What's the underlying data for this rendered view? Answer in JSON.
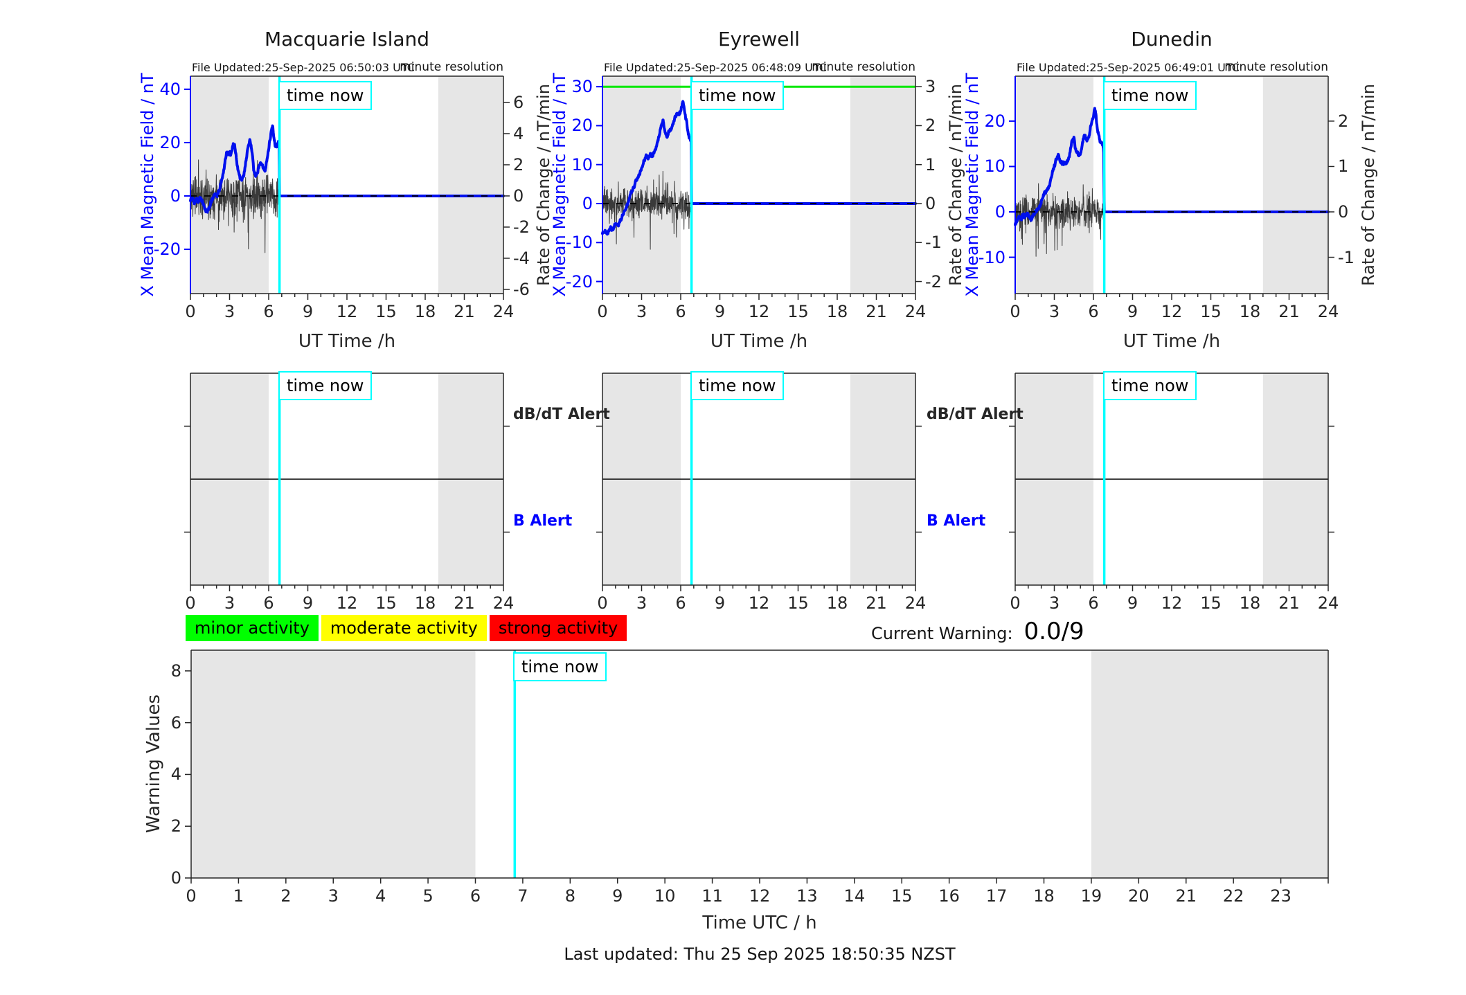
{
  "labels": {
    "time_now": "time now",
    "db_dt_alert": "dB/dT Alert",
    "b_alert": "B Alert",
    "current_warning_label": "Current Warning:",
    "current_warning_value": "0.0/9",
    "last_updated": "Last updated: Thu 25 Sep 2025 18:50:35 NZST"
  },
  "legend": {
    "items": [
      {
        "label": "minor activity",
        "color": "#00ff00"
      },
      {
        "label": "moderate activity",
        "color": "#ffff00"
      },
      {
        "label": "strong activity",
        "color": "#ff0000"
      }
    ]
  },
  "colors": {
    "field_line": "#0010ee",
    "axis_blue": "#0000ff",
    "axis_dark": "#262626",
    "time_now": "#00ffff",
    "threshold_green": "#00e800",
    "band_gray": "#e6e6e6",
    "noise": "#3a3a3a",
    "zero_dash": "#000000"
  },
  "chart_data": [
    {
      "type": "line",
      "title": "Macquarie Island",
      "file_updated": "File Updated:25-Sep-2025 06:50:03 UTC",
      "resolution_note": "minute resolution",
      "xlabel": "UT Time /h",
      "ylabel_left": "X Mean Magnetic Field / nT",
      "ylabel_right": "Rate of Change / nT/min",
      "xlim": [
        0,
        24
      ],
      "xticks_major": [
        0,
        3,
        6,
        9,
        12,
        15,
        18,
        21,
        24
      ],
      "xtick_minor_step": 1,
      "ylim_left": [
        -36.6,
        44.9
      ],
      "yticks_left": [
        40,
        20,
        0,
        -20
      ],
      "ylim_right": [
        -6.27,
        7.69
      ],
      "yticks_right": [
        6,
        4,
        2,
        0,
        -2,
        -4,
        -6
      ],
      "night_bands": [
        [
          0,
          6
        ],
        [
          19,
          24
        ]
      ],
      "time_now": 6.83,
      "zero_line": 0,
      "green_threshold_left": null,
      "field_series": {
        "name": "X mean magnetic field (nT)",
        "jitter_seed": 101,
        "jitter_amp": 0.8,
        "points": [
          [
            0,
            -1.5
          ],
          [
            0.15,
            -0.5
          ],
          [
            0.3,
            -2.5
          ],
          [
            0.45,
            -1
          ],
          [
            0.6,
            -2
          ],
          [
            0.75,
            -0.5
          ],
          [
            0.9,
            -2
          ],
          [
            1.05,
            -4
          ],
          [
            1.2,
            -5.5
          ],
          [
            1.3,
            -6
          ],
          [
            1.45,
            -4.5
          ],
          [
            1.6,
            -2
          ],
          [
            1.75,
            -0.5
          ],
          [
            1.9,
            1
          ],
          [
            2.05,
            0
          ],
          [
            2.2,
            2
          ],
          [
            2.35,
            4.5
          ],
          [
            2.5,
            8
          ],
          [
            2.65,
            13
          ],
          [
            2.8,
            17
          ],
          [
            2.9,
            15.5
          ],
          [
            3,
            16.5
          ],
          [
            3.1,
            15
          ],
          [
            3.2,
            17.5
          ],
          [
            3.3,
            19.8
          ],
          [
            3.4,
            18.5
          ],
          [
            3.5,
            15
          ],
          [
            3.6,
            11
          ],
          [
            3.7,
            9
          ],
          [
            3.8,
            7
          ],
          [
            3.95,
            6
          ],
          [
            4.1,
            8
          ],
          [
            4.25,
            13
          ],
          [
            4.4,
            18
          ],
          [
            4.55,
            20.7
          ],
          [
            4.65,
            19
          ],
          [
            4.75,
            15
          ],
          [
            4.85,
            10
          ],
          [
            5,
            7.3
          ],
          [
            5.15,
            9
          ],
          [
            5.3,
            12
          ],
          [
            5.45,
            12.7
          ],
          [
            5.55,
            11
          ],
          [
            5.7,
            9.1
          ],
          [
            5.85,
            13
          ],
          [
            5.95,
            16.3
          ],
          [
            6.1,
            21
          ],
          [
            6.2,
            24.5
          ],
          [
            6.3,
            26.4
          ],
          [
            6.4,
            22
          ],
          [
            6.5,
            19
          ],
          [
            6.6,
            18.1
          ],
          [
            6.7,
            19.5
          ],
          [
            6.76,
            20.7
          ],
          [
            6.81,
            17
          ],
          [
            6.83,
            0
          ],
          [
            24,
            0
          ]
        ]
      },
      "rate_series": {
        "name": "rate of change (nT/min, right axis)",
        "noise_seed": 11,
        "noise_amp": 1.3,
        "spike_down": 2.7,
        "spike_up": 1.7,
        "t_end": 6.83
      }
    },
    {
      "type": "line",
      "title": "Eyrewell",
      "file_updated": "File Updated:25-Sep-2025 06:48:09 UTC",
      "resolution_note": "minute resolution",
      "xlabel": "UT Time /h",
      "ylabel_left": "X Mean Magnetic Field / nT",
      "ylabel_right": "Rate of Change / nT/min",
      "xlim": [
        0,
        24
      ],
      "xticks_major": [
        0,
        3,
        6,
        9,
        12,
        15,
        18,
        21,
        24
      ],
      "xtick_minor_step": 1,
      "ylim_left": [
        -23.1,
        32.7
      ],
      "yticks_left": [
        30,
        20,
        10,
        0,
        -10,
        -20
      ],
      "ylim_right": [
        -2.31,
        3.27
      ],
      "yticks_right": [
        3,
        2,
        1,
        0,
        -1,
        -2
      ],
      "night_bands": [
        [
          0,
          6
        ],
        [
          19,
          24
        ]
      ],
      "time_now": 6.83,
      "zero_line": 0,
      "green_threshold_left": 30,
      "field_series": {
        "name": "X mean magnetic field (nT)",
        "jitter_seed": 202,
        "jitter_amp": 0.5,
        "points": [
          [
            0,
            -7.5
          ],
          [
            0.2,
            -7
          ],
          [
            0.4,
            -7.8
          ],
          [
            0.6,
            -6.2
          ],
          [
            0.8,
            -6.8
          ],
          [
            1,
            -5.2
          ],
          [
            1.2,
            -5.8
          ],
          [
            1.4,
            -4.2
          ],
          [
            1.6,
            -2.5
          ],
          [
            1.8,
            -1.2
          ],
          [
            2,
            0.8
          ],
          [
            2.2,
            2.8
          ],
          [
            2.4,
            4
          ],
          [
            2.6,
            6
          ],
          [
            2.8,
            7.2
          ],
          [
            3,
            9
          ],
          [
            3.2,
            11
          ],
          [
            3.35,
            12.2
          ],
          [
            3.5,
            11.4
          ],
          [
            3.65,
            12.6
          ],
          [
            3.8,
            12.2
          ],
          [
            3.95,
            13
          ],
          [
            4.1,
            14.2
          ],
          [
            4.3,
            17
          ],
          [
            4.5,
            20
          ],
          [
            4.65,
            21.2
          ],
          [
            4.8,
            18.2
          ],
          [
            4.95,
            17.2
          ],
          [
            5.1,
            18.6
          ],
          [
            5.25,
            19.2
          ],
          [
            5.4,
            20.2
          ],
          [
            5.55,
            22
          ],
          [
            5.7,
            23.2
          ],
          [
            5.85,
            22.6
          ],
          [
            6,
            24
          ],
          [
            6.15,
            26
          ],
          [
            6.25,
            25
          ],
          [
            6.35,
            22.6
          ],
          [
            6.45,
            21
          ],
          [
            6.55,
            18.4
          ],
          [
            6.65,
            17
          ],
          [
            6.75,
            16.4
          ],
          [
            6.81,
            16
          ],
          [
            6.83,
            0
          ],
          [
            24,
            0
          ]
        ]
      },
      "rate_series": {
        "name": "rate of change (nT/min, right axis)",
        "noise_seed": 23,
        "noise_amp": 0.38,
        "spike_down": 1.25,
        "spike_up": 0.8,
        "t_end": 6.83
      }
    },
    {
      "type": "line",
      "title": "Dunedin",
      "file_updated": "File Updated:25-Sep-2025 06:49:01 UTC",
      "resolution_note": "minute resolution",
      "xlabel": "UT Time /h",
      "ylabel_left": "X Mean Magnetic Field / nT",
      "ylabel_right": "Rate of Change / nT/min",
      "xlim": [
        0,
        24
      ],
      "xticks_major": [
        0,
        3,
        6,
        9,
        12,
        15,
        18,
        21,
        24
      ],
      "xtick_minor_step": 1,
      "ylim_left": [
        -18.0,
        29.9
      ],
      "yticks_left": [
        20,
        10,
        0,
        -10
      ],
      "ylim_right": [
        -1.8,
        2.99
      ],
      "yticks_right": [
        2,
        1,
        0,
        -1
      ],
      "night_bands": [
        [
          0,
          6
        ],
        [
          19,
          24
        ]
      ],
      "time_now": 6.83,
      "zero_line": 0,
      "green_threshold_left": null,
      "field_series": {
        "name": "X mean magnetic field (nT)",
        "jitter_seed": 303,
        "jitter_amp": 0.45,
        "points": [
          [
            0,
            -3
          ],
          [
            0.15,
            -1.8
          ],
          [
            0.3,
            -1
          ],
          [
            0.45,
            -1.6
          ],
          [
            0.6,
            -0.6
          ],
          [
            0.75,
            -1.2
          ],
          [
            0.9,
            -0.4
          ],
          [
            1.05,
            -1
          ],
          [
            1.2,
            -1.8
          ],
          [
            1.35,
            -1
          ],
          [
            1.5,
            -0.2
          ],
          [
            1.65,
            0.4
          ],
          [
            1.8,
            0.8
          ],
          [
            1.95,
            1.6
          ],
          [
            2.1,
            3
          ],
          [
            2.25,
            4.2
          ],
          [
            2.4,
            4.6
          ],
          [
            2.55,
            5.2
          ],
          [
            2.7,
            6.5
          ],
          [
            2.85,
            8.5
          ],
          [
            3,
            10
          ],
          [
            3.15,
            11.6
          ],
          [
            3.3,
            12.4
          ],
          [
            3.45,
            11.2
          ],
          [
            3.6,
            10.6
          ],
          [
            3.75,
            10.8
          ],
          [
            3.9,
            10.8
          ],
          [
            4.05,
            11.4
          ],
          [
            4.2,
            13
          ],
          [
            4.35,
            15.4
          ],
          [
            4.5,
            16.4
          ],
          [
            4.6,
            14.2
          ],
          [
            4.75,
            13
          ],
          [
            4.9,
            12.6
          ],
          [
            5.05,
            13.2
          ],
          [
            5.2,
            16
          ],
          [
            5.35,
            16.8
          ],
          [
            5.5,
            16
          ],
          [
            5.65,
            16.6
          ],
          [
            5.8,
            18.8
          ],
          [
            5.95,
            20.4
          ],
          [
            6.1,
            22.8
          ],
          [
            6.2,
            21
          ],
          [
            6.3,
            18.2
          ],
          [
            6.4,
            17
          ],
          [
            6.5,
            15.6
          ],
          [
            6.6,
            15
          ],
          [
            6.7,
            15
          ],
          [
            6.78,
            14
          ],
          [
            6.83,
            0
          ],
          [
            24,
            0
          ]
        ]
      },
      "rate_series": {
        "name": "rate of change (nT/min, right axis)",
        "noise_seed": 37,
        "noise_amp": 0.36,
        "spike_down": 0.95,
        "spike_up": 0.65,
        "t_end": 6.83
      }
    },
    {
      "type": "alert-timeline",
      "stations": [
        "Macquarie Island",
        "Eyrewell",
        "Dunedin"
      ],
      "rows": [
        "dB/dT Alert",
        "B Alert"
      ],
      "xlim": [
        0,
        24
      ],
      "xticks_major": [
        0,
        3,
        6,
        9,
        12,
        15,
        18,
        21,
        24
      ],
      "xtick_minor_step": 1,
      "night_bands": [
        [
          0,
          6
        ],
        [
          19,
          24
        ]
      ],
      "time_now": 6.83,
      "events": []
    },
    {
      "type": "line",
      "ylabel": "Warning Values",
      "xlabel": "Time UTC / h",
      "ylim": [
        0,
        8.8
      ],
      "yticks": [
        0,
        2,
        4,
        6,
        8
      ],
      "xlim": [
        0,
        24
      ],
      "xticks": [
        0,
        1,
        2,
        3,
        4,
        5,
        6,
        7,
        8,
        9,
        10,
        11,
        12,
        13,
        14,
        15,
        16,
        17,
        18,
        19,
        20,
        21,
        22,
        23
      ],
      "night_bands": [
        [
          0,
          6
        ],
        [
          19,
          24
        ]
      ],
      "time_now": 6.83,
      "series": []
    }
  ]
}
